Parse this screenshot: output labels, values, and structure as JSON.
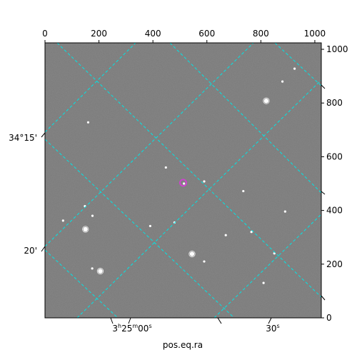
{
  "chart_data": {
    "type": "scatter",
    "title": "",
    "xlabel": "pos.eq.ra",
    "ylabel": "",
    "pixel_axes": {
      "x_ticks": [
        0,
        200,
        400,
        600,
        800,
        1000
      ],
      "y_ticks": [
        0,
        200,
        400,
        600,
        800,
        1000
      ],
      "xlim": [
        0,
        1024
      ],
      "ylim": [
        0,
        1024
      ]
    },
    "world_axes": {
      "ra_tick_labels": [
        "3h25m00s",
        "30s"
      ],
      "dec_tick_labels": [
        "34°15'",
        "20'"
      ]
    },
    "grid": true,
    "grid_color": "#00e5e5",
    "image_cmap": "gray",
    "stars": {
      "x": [
        148,
        176,
        390,
        820,
        925,
        160,
        515,
        448,
        590,
        735,
        890,
        150,
        67,
        480,
        670,
        545,
        205,
        810,
        850,
        175,
        590,
        765,
        880
      ],
      "y": [
        416,
        380,
        342,
        808,
        928,
        728,
        500,
        560,
        508,
        472,
        396,
        330,
        362,
        355,
        308,
        238,
        174,
        130,
        240,
        184,
        210,
        320,
        880
      ],
      "bright": [
        false,
        false,
        false,
        true,
        false,
        false,
        false,
        false,
        false,
        false,
        false,
        true,
        false,
        false,
        false,
        true,
        true,
        false,
        false,
        false,
        false,
        false,
        false
      ]
    },
    "markers": [
      {
        "name": "target",
        "x": 512,
        "y": 503,
        "color": "#cc44cc"
      }
    ]
  },
  "labels": {
    "xlabel": "pos.eq.ra",
    "ra_major": "3",
    "ra_h": "h",
    "ra_min": "25",
    "ra_m": "m",
    "ra_sec": "00",
    "ra_s": "s",
    "ra_30": "30",
    "ra_30s": "s",
    "dec_1": "34°15'",
    "dec_2": "20'"
  }
}
